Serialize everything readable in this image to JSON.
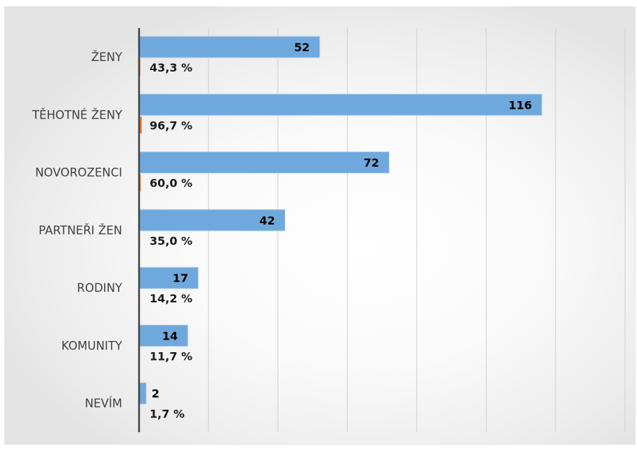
{
  "chart_data": {
    "type": "bar",
    "orientation": "horizontal",
    "categories": [
      "ŽENY",
      "TĚHOTNÉ ŽENY",
      "NOVOROZENCI",
      "PARTNEŘI ŽEN",
      "RODINY",
      "KOMUNITY",
      "NEVÍM"
    ],
    "series": [
      {
        "values": [
          52,
          116,
          72,
          42,
          17,
          14,
          2
        ],
        "data_labels": [
          "52",
          "116",
          "72",
          "42",
          "17",
          "14",
          "2"
        ],
        "color": "#6fa8dc"
      },
      {
        "values": [
          43.3,
          96.7,
          60.0,
          35.0,
          14.2,
          11.7,
          1.7
        ],
        "data_labels": [
          "43,3 %",
          "96,7 %",
          "60,0 %",
          "35,0 %",
          "14,2 %",
          "11,7 %",
          "1,7 %"
        ],
        "color": "#ed7d31"
      }
    ],
    "xlim": [
      0,
      140
    ],
    "grid": true,
    "legend": "none",
    "title": "",
    "xlabel": "",
    "ylabel": ""
  }
}
